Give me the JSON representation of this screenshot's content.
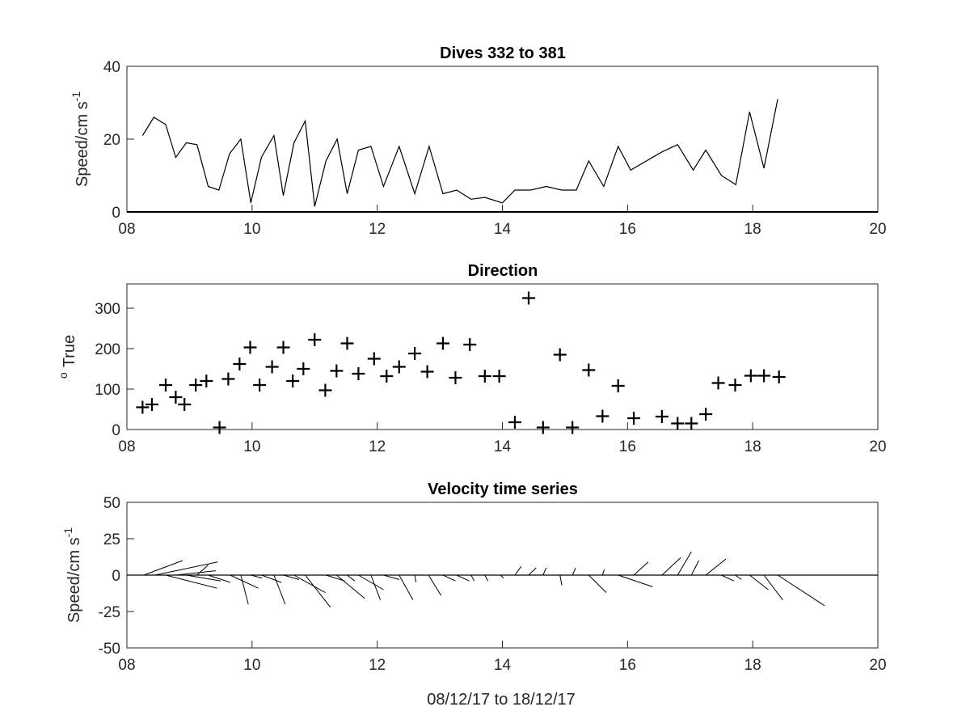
{
  "figure": {
    "xlabel": "08/12/17 to 18/12/17"
  },
  "chart_data": [
    {
      "type": "line",
      "title": "Dives 332 to 381",
      "ylabel_main": "Speed/cm s",
      "ylabel_sup": "-1",
      "xlim": [
        8,
        20
      ],
      "ylim": [
        0,
        40
      ],
      "xticks": [
        "08",
        "10",
        "12",
        "14",
        "16",
        "18",
        "20"
      ],
      "yticks": [
        "0",
        "20",
        "40"
      ],
      "grid": false,
      "series": [
        {
          "x": [
            8.25,
            8.43,
            8.62,
            8.78,
            8.95,
            9.12,
            9.3,
            9.47,
            9.64,
            9.82,
            9.98,
            10.15,
            10.35,
            10.5,
            10.67,
            10.85,
            11.0,
            11.18,
            11.36,
            11.52,
            11.7,
            11.9,
            12.1,
            12.35,
            12.6,
            12.83,
            13.05,
            13.27,
            13.5,
            13.72,
            14.0,
            14.2,
            14.45,
            14.7,
            14.95,
            15.18,
            15.38,
            15.62,
            15.85,
            16.05,
            16.55,
            16.8,
            17.05,
            17.25,
            17.5,
            17.73,
            17.95,
            18.18,
            18.4
          ],
          "y": [
            21,
            26,
            24,
            15,
            19,
            18.5,
            7,
            6,
            16,
            20,
            2.5,
            15,
            21,
            4.5,
            19,
            25,
            1.5,
            14,
            20,
            5,
            17,
            18,
            7,
            18,
            5,
            18,
            5,
            6,
            3.5,
            4,
            2.5,
            6,
            6,
            7,
            6,
            6,
            14,
            7,
            18,
            11.5,
            16.5,
            18.5,
            11.5,
            17,
            10,
            7.5,
            27.5,
            12,
            31
          ]
        }
      ]
    },
    {
      "type": "scatter",
      "title": "Direction",
      "ylabel_main": "True",
      "ylabel_sup": "o",
      "xlim": [
        8,
        20
      ],
      "ylim": [
        0,
        360
      ],
      "xticks": [
        "08",
        "10",
        "12",
        "14",
        "16",
        "18",
        "20"
      ],
      "yticks": [
        "0",
        "100",
        "200",
        "300"
      ],
      "grid": false,
      "marker": "+",
      "series": [
        {
          "x": [
            8.25,
            8.4,
            8.62,
            8.78,
            8.92,
            9.1,
            9.27,
            9.48,
            9.62,
            9.8,
            9.97,
            10.12,
            10.32,
            10.5,
            10.65,
            10.82,
            11.0,
            11.17,
            11.35,
            11.52,
            11.7,
            11.95,
            12.15,
            12.35,
            12.6,
            12.8,
            13.05,
            13.25,
            13.48,
            13.72,
            13.95,
            14.2,
            14.42,
            14.65,
            14.92,
            15.12,
            15.38,
            15.6,
            15.85,
            16.1,
            16.55,
            16.8,
            17.02,
            17.25,
            17.45,
            17.72,
            17.97,
            18.18,
            18.42
          ],
          "y": [
            55,
            62,
            110,
            80,
            62,
            110,
            120,
            5,
            125,
            162,
            203,
            110,
            155,
            203,
            120,
            150,
            222,
            97,
            145,
            213,
            138,
            175,
            132,
            155,
            188,
            143,
            213,
            128,
            210,
            132,
            132,
            18,
            325,
            5,
            185,
            5,
            147,
            33,
            108,
            28,
            32,
            15,
            15,
            38,
            115,
            110,
            133,
            133,
            130
          ]
        }
      ]
    },
    {
      "type": "quiver",
      "title": "Velocity time series",
      "ylabel_main": "Speed/cm s",
      "ylabel_sup": "-1",
      "xlim": [
        8,
        20
      ],
      "ylim": [
        -50,
        50
      ],
      "xticks": [
        "08",
        "10",
        "12",
        "14",
        "16",
        "18",
        "20"
      ],
      "yticks": [
        "-50",
        "-25",
        "0",
        "25",
        "50"
      ],
      "grid": false,
      "baseline": 0,
      "vectors": [
        {
          "x": 8.27,
          "dx": 0.62,
          "dy": 10
        },
        {
          "x": 8.45,
          "dx": 1.0,
          "dy": 9
        },
        {
          "x": 8.62,
          "dx": 0.82,
          "dy": -9
        },
        {
          "x": 8.78,
          "dx": 0.64,
          "dy": 3
        },
        {
          "x": 8.95,
          "dx": 0.55,
          "dy": -4
        },
        {
          "x": 9.12,
          "dx": 0.18,
          "dy": 7
        },
        {
          "x": 9.3,
          "dx": 0.35,
          "dy": -5
        },
        {
          "x": 9.5,
          "dx": 0.3,
          "dy": 0
        },
        {
          "x": 9.65,
          "dx": 0.45,
          "dy": -9
        },
        {
          "x": 9.82,
          "dx": 0.12,
          "dy": -20
        },
        {
          "x": 9.98,
          "dx": 0.18,
          "dy": -2
        },
        {
          "x": 10.15,
          "dx": 0.32,
          "dy": -5
        },
        {
          "x": 10.35,
          "dx": 0.18,
          "dy": -20
        },
        {
          "x": 10.5,
          "dx": 0.25,
          "dy": -3
        },
        {
          "x": 10.67,
          "dx": 0.5,
          "dy": -12
        },
        {
          "x": 10.85,
          "dx": 0.4,
          "dy": -22
        },
        {
          "x": 11.0,
          "dx": 0.15,
          "dy": 0
        },
        {
          "x": 11.18,
          "dx": 0.3,
          "dy": -4
        },
        {
          "x": 11.35,
          "dx": 0.45,
          "dy": -16
        },
        {
          "x": 11.52,
          "dx": 0.12,
          "dy": -4
        },
        {
          "x": 11.7,
          "dx": 0.4,
          "dy": -10
        },
        {
          "x": 11.9,
          "dx": 0.15,
          "dy": -17
        },
        {
          "x": 12.1,
          "dx": 0.25,
          "dy": -3
        },
        {
          "x": 12.35,
          "dx": 0.22,
          "dy": -17
        },
        {
          "x": 12.6,
          "dx": 0.02,
          "dy": -5
        },
        {
          "x": 12.82,
          "dx": 0.2,
          "dy": -14
        },
        {
          "x": 13.05,
          "dx": 0.2,
          "dy": -4
        },
        {
          "x": 13.27,
          "dx": 0.2,
          "dy": -4
        },
        {
          "x": 13.5,
          "dx": 0.05,
          "dy": -4
        },
        {
          "x": 13.72,
          "dx": 0.05,
          "dy": -4
        },
        {
          "x": 13.97,
          "dx": 0.05,
          "dy": -2
        },
        {
          "x": 14.2,
          "dx": 0.1,
          "dy": 6
        },
        {
          "x": 14.42,
          "dx": 0.12,
          "dy": 5
        },
        {
          "x": 14.65,
          "dx": 0.05,
          "dy": 5
        },
        {
          "x": 14.92,
          "dx": 0.03,
          "dy": -7
        },
        {
          "x": 15.12,
          "dx": 0.05,
          "dy": 5
        },
        {
          "x": 15.38,
          "dx": 0.28,
          "dy": -12
        },
        {
          "x": 15.6,
          "dx": 0.03,
          "dy": 4
        },
        {
          "x": 15.85,
          "dx": 0.55,
          "dy": -8
        },
        {
          "x": 16.1,
          "dx": 0.23,
          "dy": 9
        },
        {
          "x": 16.55,
          "dx": 0.3,
          "dy": 12
        },
        {
          "x": 16.8,
          "dx": 0.22,
          "dy": 16
        },
        {
          "x": 17.02,
          "dx": 0.12,
          "dy": 10
        },
        {
          "x": 17.25,
          "dx": 0.32,
          "dy": 11
        },
        {
          "x": 17.5,
          "dx": 0.2,
          "dy": -4
        },
        {
          "x": 17.72,
          "dx": 0.1,
          "dy": -3
        },
        {
          "x": 17.95,
          "dx": 0.3,
          "dy": -10
        },
        {
          "x": 18.18,
          "dx": 0.3,
          "dy": -17
        },
        {
          "x": 18.4,
          "dx": 0.75,
          "dy": -21
        }
      ]
    }
  ]
}
